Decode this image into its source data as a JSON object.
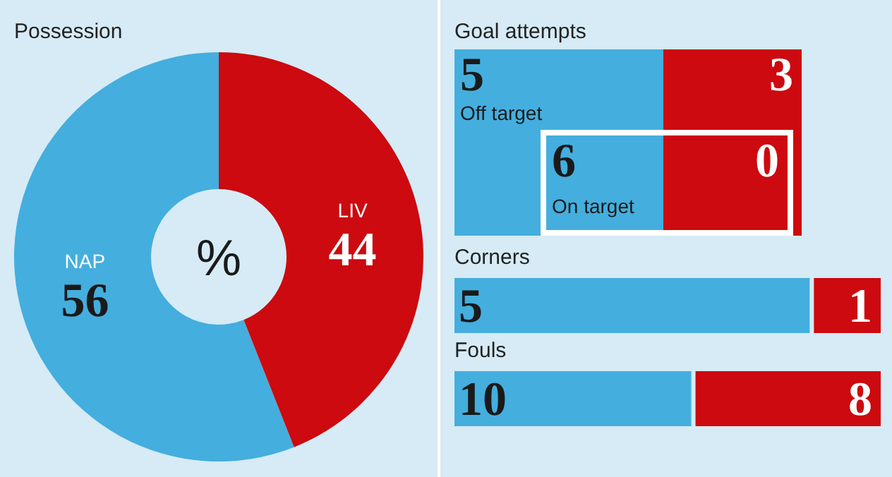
{
  "chart_data": [
    {
      "type": "donut",
      "title": "Possession",
      "categories": [
        "NAP",
        "LIV"
      ],
      "values": [
        56,
        44
      ],
      "colors": [
        "#44aede",
        "#cc0a0f"
      ],
      "data_labels": true,
      "annotations": [
        "%"
      ]
    },
    {
      "type": "other",
      "title": "Goal attempts",
      "categories": [
        "Off target",
        "On target"
      ],
      "data_labels": true,
      "series": [
        {
          "color": "#44aede",
          "values": [
            5,
            6
          ]
        },
        {
          "color": "#cc0a0f",
          "values": [
            3,
            0
          ]
        }
      ]
    },
    {
      "type": "bar",
      "orientation": "horizontal",
      "stacked": true,
      "title": "Corners",
      "categories": [
        null
      ],
      "data_labels": true,
      "series": [
        {
          "color": "#44aede",
          "values": [
            5
          ]
        },
        {
          "color": "#cc0a0f",
          "values": [
            1
          ]
        }
      ]
    },
    {
      "type": "bar",
      "orientation": "horizontal",
      "stacked": true,
      "title": "Fouls",
      "categories": [
        null
      ],
      "data_labels": true,
      "series": [
        {
          "color": "#44aede",
          "values": [
            10
          ]
        },
        {
          "color": "#cc0a0f",
          "values": [
            8
          ]
        }
      ]
    }
  ]
}
